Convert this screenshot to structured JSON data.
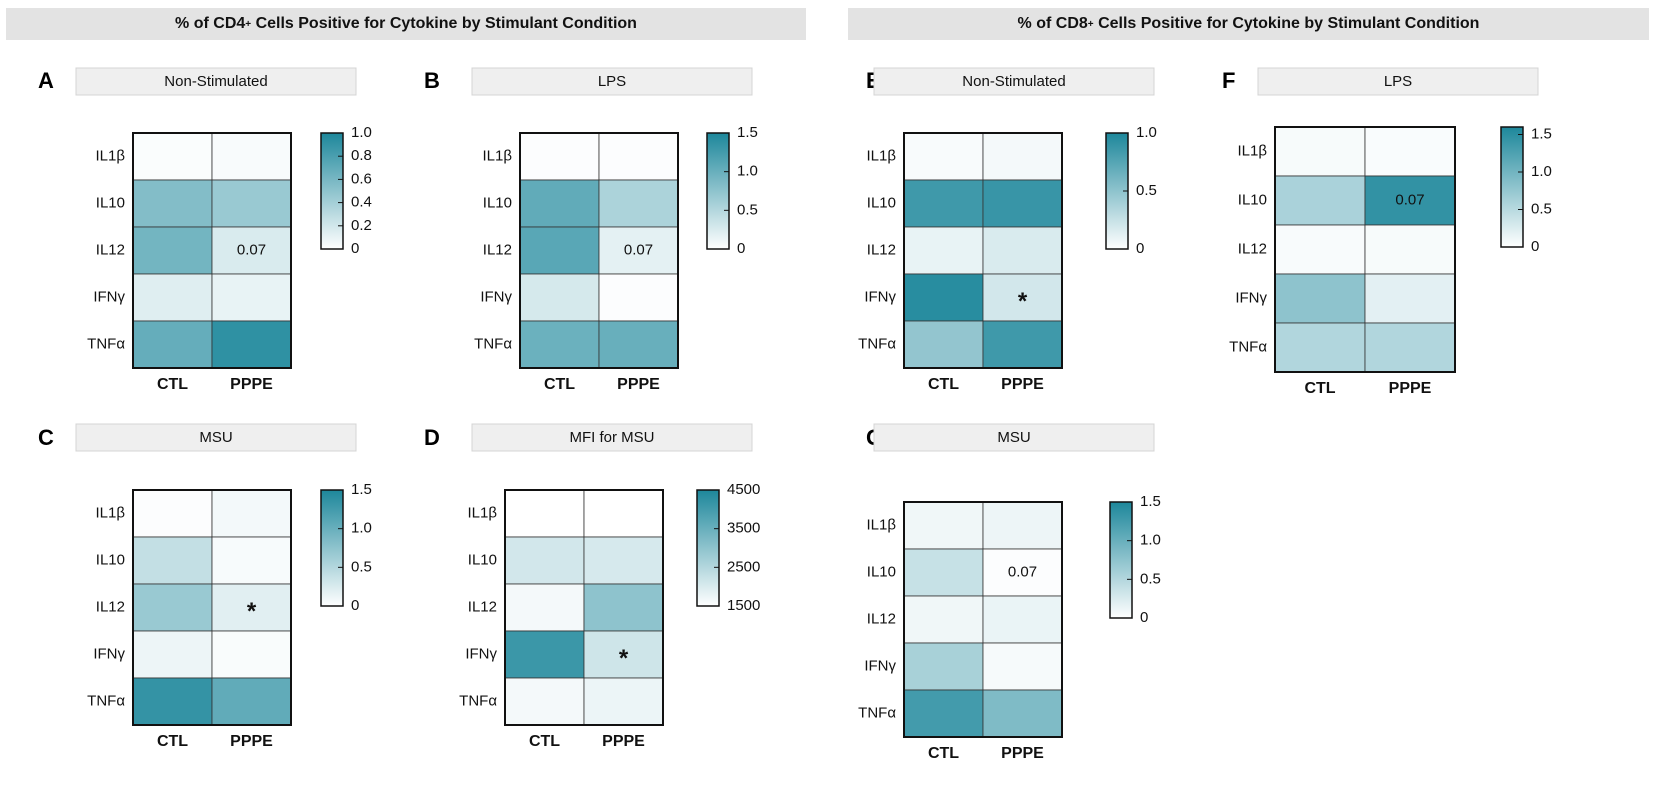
{
  "headers": {
    "cd4": {
      "prefix": "% of CD4",
      "sup": "+",
      "suffix": " Cells Positive for Cytokine by Stimulant Condition"
    },
    "cd8": {
      "prefix": "% of CD8",
      "sup": "+",
      "suffix": " Cells Positive for Cytokine by Stimulant Condition"
    }
  },
  "colors": {
    "low": "#ffffff",
    "high": "#1d879b",
    "grid": "#333333",
    "title_bg": "#efefef"
  },
  "chart_data": [
    {
      "id": "A",
      "type": "heatmap",
      "title": "Non-Stimulated",
      "rows": [
        "IL1β",
        "IL10",
        "IL12",
        "IFNγ",
        "TNFα"
      ],
      "columns": [
        "CTL",
        "PPPE"
      ],
      "values": [
        [
          0.02,
          0.03
        ],
        [
          0.55,
          0.45
        ],
        [
          0.62,
          0.17
        ],
        [
          0.14,
          0.1
        ],
        [
          0.68,
          0.92
        ]
      ],
      "annotations": [
        {
          "row": 2,
          "col": 1,
          "text": "0.07"
        }
      ],
      "colorbar": {
        "min": 0,
        "max": 1.0,
        "ticks": [
          "0",
          "0.2",
          "0.4",
          "0.6",
          "0.8",
          "1.0"
        ]
      }
    },
    {
      "id": "B",
      "type": "heatmap",
      "title": "LPS",
      "rows": [
        "IL1β",
        "IL10",
        "IL12",
        "IFNγ",
        "TNFα"
      ],
      "columns": [
        "CTL",
        "PPPE"
      ],
      "values": [
        [
          0.02,
          0.02
        ],
        [
          1.05,
          0.55
        ],
        [
          1.1,
          0.18
        ],
        [
          0.28,
          0.02
        ],
        [
          0.98,
          1.0
        ]
      ],
      "annotations": [
        {
          "row": 2,
          "col": 1,
          "text": "0.07"
        }
      ],
      "colorbar": {
        "min": 0,
        "max": 1.5,
        "ticks": [
          "0",
          "0.5",
          "1.0",
          "1.5"
        ]
      }
    },
    {
      "id": "C",
      "type": "heatmap",
      "title": "MSU",
      "rows": [
        "IL1β",
        "IL10",
        "IL12",
        "IFNγ",
        "TNFα"
      ],
      "columns": [
        "CTL",
        "PPPE"
      ],
      "values": [
        [
          0.02,
          0.08
        ],
        [
          0.4,
          0.05
        ],
        [
          0.68,
          0.2
        ],
        [
          0.12,
          0.04
        ],
        [
          1.35,
          1.05
        ]
      ],
      "annotations": [
        {
          "row": 2,
          "col": 1,
          "text": "*"
        }
      ],
      "colorbar": {
        "min": 0,
        "max": 1.5,
        "ticks": [
          "0",
          "0.5",
          "1.0",
          "1.5"
        ]
      }
    },
    {
      "id": "D",
      "type": "heatmap",
      "title": "MFI for MSU",
      "rows": [
        "IL1β",
        "IL10",
        "IL12",
        "IFNγ",
        "TNFα"
      ],
      "columns": [
        "CTL",
        "PPPE"
      ],
      "values": [
        [
          1500,
          1500
        ],
        [
          2100,
          2050
        ],
        [
          1650,
          3000
        ],
        [
          4100,
          2150
        ],
        [
          1650,
          1750
        ]
      ],
      "annotations": [
        {
          "row": 3,
          "col": 1,
          "text": "*"
        }
      ],
      "colorbar": {
        "min": 1500,
        "max": 4500,
        "ticks": [
          "1500",
          "2500",
          "3500",
          "4500"
        ]
      }
    },
    {
      "id": "E",
      "type": "heatmap",
      "title": "Non-Stimulated",
      "rows": [
        "IL1β",
        "IL10",
        "IL12",
        "IFNγ",
        "TNFα"
      ],
      "columns": [
        "CTL",
        "PPPE"
      ],
      "values": [
        [
          0.03,
          0.05
        ],
        [
          0.85,
          0.88
        ],
        [
          0.1,
          0.17
        ],
        [
          0.95,
          0.2
        ],
        [
          0.48,
          0.85
        ]
      ],
      "annotations": [
        {
          "row": 3,
          "col": 1,
          "text": "*"
        }
      ],
      "colorbar": {
        "min": 0,
        "max": 1.0,
        "ticks": [
          "0",
          "0.5",
          "1.0"
        ]
      }
    },
    {
      "id": "F",
      "type": "heatmap",
      "title": "LPS",
      "rows": [
        "IL1β",
        "IL10",
        "IL12",
        "IFNγ",
        "TNFα"
      ],
      "columns": [
        "CTL",
        "PPPE"
      ],
      "values": [
        [
          0.06,
          0.04
        ],
        [
          0.6,
          1.45
        ],
        [
          0.05,
          0.06
        ],
        [
          0.8,
          0.2
        ],
        [
          0.55,
          0.55
        ]
      ],
      "annotations": [
        {
          "row": 1,
          "col": 1,
          "text": "0.07"
        }
      ],
      "colorbar": {
        "min": 0,
        "max": 1.6,
        "ticks": [
          "0",
          "0.5",
          "1.0",
          "1.5"
        ]
      }
    },
    {
      "id": "G",
      "type": "heatmap",
      "title": "MSU",
      "rows": [
        "IL1β",
        "IL10",
        "IL12",
        "IFNγ",
        "TNFα"
      ],
      "columns": [
        "CTL",
        "PPPE"
      ],
      "values": [
        [
          0.1,
          0.12
        ],
        [
          0.38,
          0.02
        ],
        [
          0.1,
          0.14
        ],
        [
          0.58,
          0.06
        ],
        [
          1.25,
          0.85
        ]
      ],
      "annotations": [
        {
          "row": 1,
          "col": 1,
          "text": "0.07"
        }
      ],
      "colorbar": {
        "min": 0,
        "max": 1.5,
        "ticks": [
          "0",
          "0.5",
          "1.0",
          "1.5"
        ]
      }
    }
  ]
}
